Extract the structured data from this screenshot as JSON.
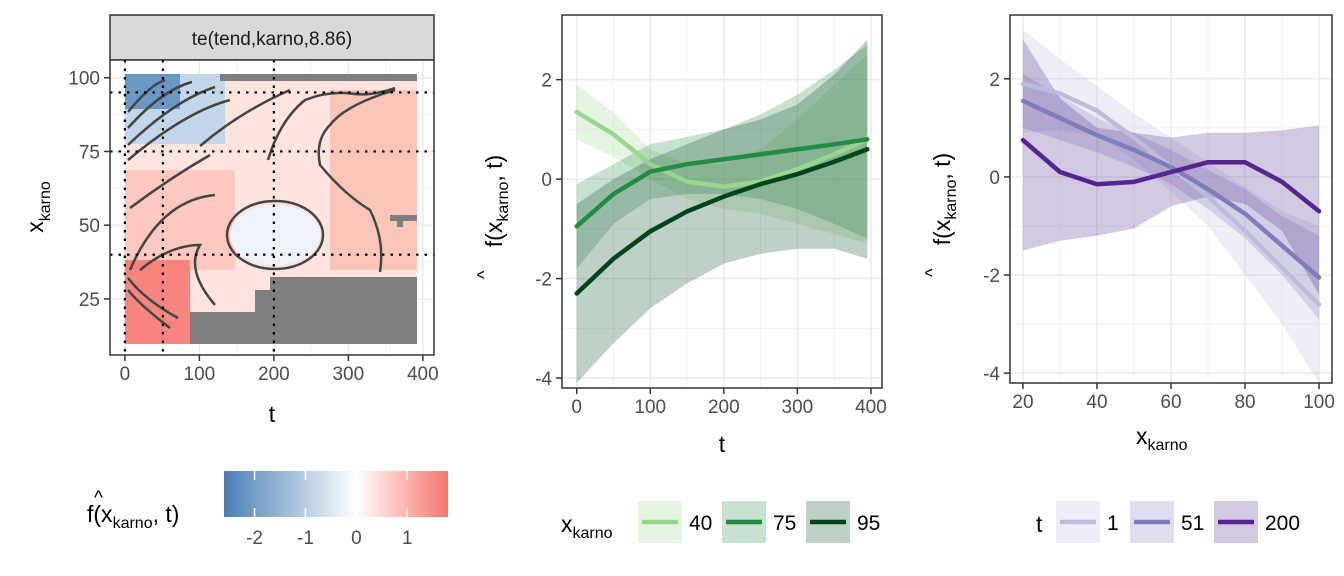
{
  "chart_data": [
    {
      "type": "heatmap",
      "strip_title": "te(tend,karno,8.86)",
      "xlabel": "t",
      "ylabel_main": "x",
      "ylabel_sub": "karno",
      "xlim": [
        -20,
        415
      ],
      "ylim": [
        6,
        106
      ],
      "x_ticks": [
        0,
        100,
        200,
        300,
        400
      ],
      "y_ticks": [
        25,
        50,
        75,
        100
      ],
      "grid": true,
      "guide_v": [
        0,
        51,
        200
      ],
      "guide_h": [
        40,
        75,
        95
      ],
      "colorbar": {
        "title_hat": "^",
        "title_main": "f(x",
        "title_sub": "karno",
        "title_end": ", t)",
        "range": [
          -2.6,
          1.8
        ],
        "ticks": [
          -2,
          -1,
          0,
          1
        ],
        "tick_labels": [
          "-2",
          "-1",
          "0",
          "1"
        ],
        "low_color": "#4a7fb5",
        "mid_color": "#ffffff",
        "high_color": "#f8766d"
      }
    },
    {
      "type": "line",
      "xlabel": "t",
      "ylabel_hat": "^",
      "ylabel_main": "f(x",
      "ylabel_sub": "karno",
      "ylabel_end": ", t)",
      "xlim": [
        -20,
        415
      ],
      "ylim": [
        -4.2,
        3.3
      ],
      "x_ticks": [
        0,
        100,
        200,
        300,
        400
      ],
      "y_ticks": [
        -4,
        -2,
        0,
        2
      ],
      "legend_position": "bottom",
      "legend_title_main": "x",
      "legend_title_sub": "karno",
      "series": [
        {
          "name": "40",
          "color": "#9ad68f",
          "x": [
            0,
            50,
            100,
            150,
            200,
            250,
            300,
            350,
            395
          ],
          "y": [
            1.35,
            0.9,
            0.3,
            -0.05,
            -0.15,
            -0.05,
            0.2,
            0.5,
            0.8
          ],
          "lower": [
            0.8,
            0.45,
            0.0,
            -0.4,
            -0.6,
            -0.7,
            -0.9,
            -1.1,
            -1.3
          ],
          "upper": [
            1.9,
            1.35,
            0.6,
            0.3,
            0.3,
            0.6,
            1.2,
            1.9,
            2.5
          ]
        },
        {
          "name": "75",
          "color": "#238b45",
          "x": [
            0,
            50,
            100,
            150,
            200,
            250,
            300,
            350,
            395
          ],
          "y": [
            -0.95,
            -0.3,
            0.15,
            0.3,
            0.4,
            0.5,
            0.6,
            0.7,
            0.8
          ],
          "lower": [
            -1.8,
            -0.9,
            -0.4,
            -0.3,
            -0.3,
            -0.4,
            -0.6,
            -0.9,
            -1.2
          ],
          "upper": [
            -0.1,
            0.3,
            0.7,
            0.85,
            1.0,
            1.3,
            1.7,
            2.2,
            2.7
          ]
        },
        {
          "name": "95",
          "color": "#00441b",
          "x": [
            0,
            50,
            100,
            150,
            200,
            250,
            300,
            350,
            395
          ],
          "y": [
            -2.3,
            -1.6,
            -1.05,
            -0.65,
            -0.35,
            -0.1,
            0.1,
            0.35,
            0.6
          ],
          "lower": [
            -4.1,
            -3.3,
            -2.6,
            -2.1,
            -1.7,
            -1.5,
            -1.4,
            -1.4,
            -1.6
          ],
          "upper": [
            -0.5,
            0.0,
            0.4,
            0.7,
            1.0,
            1.2,
            1.5,
            2.1,
            2.8
          ]
        }
      ]
    },
    {
      "type": "line",
      "xlabel_main": "x",
      "xlabel_sub": "karno",
      "ylabel_hat": "^",
      "ylabel_main": "f(x",
      "ylabel_sub": "karno",
      "ylabel_end": ", t)",
      "xlim": [
        16.5,
        103.5
      ],
      "ylim": [
        -4.2,
        3.3
      ],
      "x_ticks": [
        20,
        40,
        60,
        80,
        100
      ],
      "y_ticks": [
        -4,
        -2,
        0,
        2
      ],
      "legend_position": "bottom",
      "legend_title": "t",
      "series": [
        {
          "name": "1",
          "color": "#bcbddc",
          "x": [
            20,
            30,
            40,
            50,
            60,
            70,
            80,
            90,
            100
          ],
          "y": [
            1.9,
            1.7,
            1.35,
            0.8,
            0.2,
            -0.4,
            -1.1,
            -1.85,
            -2.6
          ],
          "lower": [
            0.9,
            0.95,
            0.85,
            0.35,
            -0.3,
            -1.0,
            -2.0,
            -3.0,
            -4.2
          ],
          "upper": [
            3.0,
            2.4,
            1.85,
            1.3,
            0.8,
            0.3,
            -0.2,
            -0.7,
            -1.0
          ]
        },
        {
          "name": "51",
          "color": "#807dba",
          "x": [
            20,
            30,
            40,
            50,
            60,
            70,
            80,
            90,
            100
          ],
          "y": [
            1.55,
            1.2,
            0.85,
            0.55,
            0.2,
            -0.25,
            -0.75,
            -1.4,
            -2.05
          ],
          "lower": [
            1.0,
            0.75,
            0.5,
            0.2,
            -0.15,
            -0.65,
            -1.25,
            -2.0,
            -2.9
          ],
          "upper": [
            2.1,
            1.65,
            1.2,
            0.9,
            0.55,
            0.15,
            -0.25,
            -0.8,
            -1.2
          ]
        },
        {
          "name": "200",
          "color": "#54278f",
          "x": [
            20,
            30,
            40,
            50,
            60,
            70,
            80,
            90,
            100
          ],
          "y": [
            0.75,
            0.1,
            -0.15,
            -0.1,
            0.1,
            0.3,
            0.3,
            -0.1,
            -0.7
          ],
          "lower": [
            -1.5,
            -1.3,
            -1.2,
            -1.05,
            -0.6,
            -0.4,
            -0.55,
            -1.1,
            -2.4
          ],
          "upper": [
            2.8,
            1.6,
            1.0,
            0.9,
            0.8,
            0.9,
            0.9,
            0.95,
            1.05
          ]
        }
      ]
    }
  ]
}
